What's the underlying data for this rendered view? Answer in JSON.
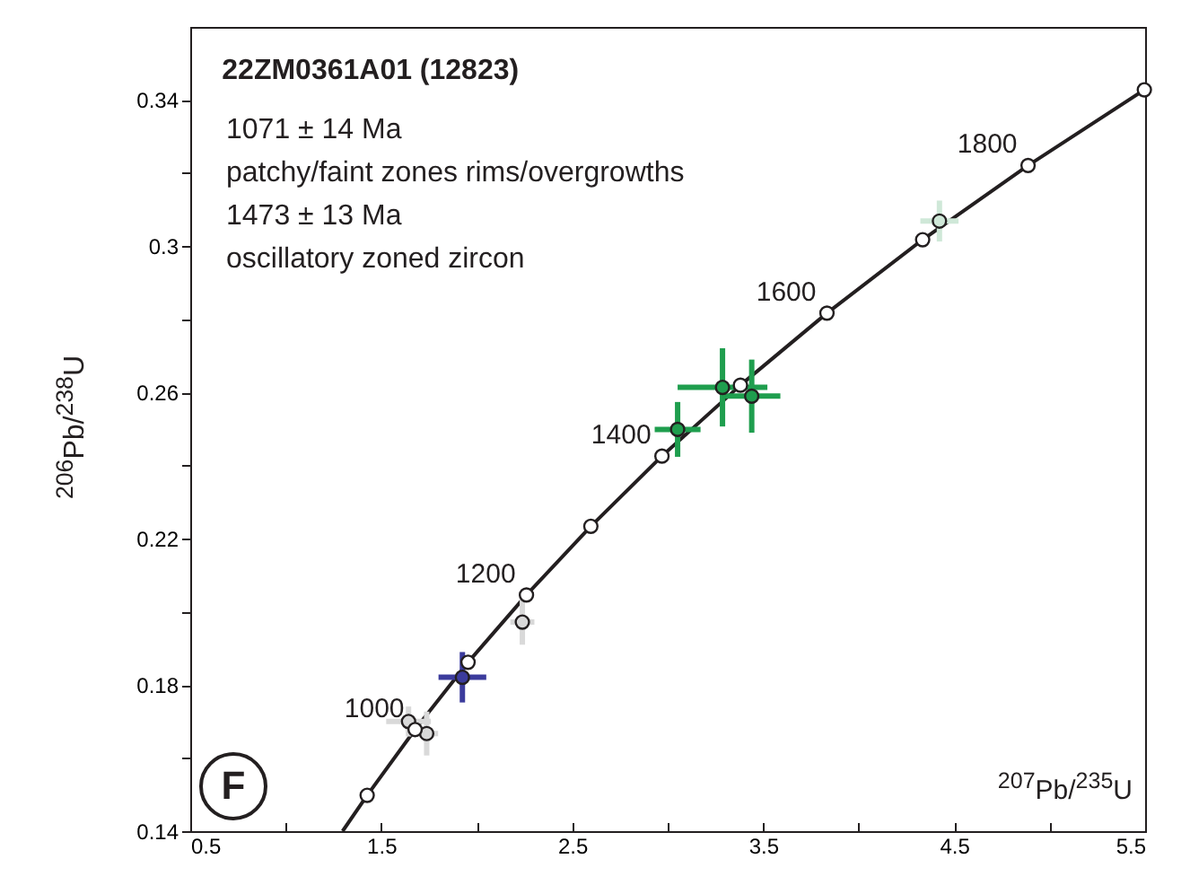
{
  "chart_data": {
    "type": "scatter",
    "title": "22ZM0361A01 (12823)",
    "xlabel": "$^{207}$Pb/$^{235}$U",
    "ylabel": "$^{206}$Pb/$^{238}$U",
    "xlim": [
      0.5,
      5.5
    ],
    "ylim": [
      0.14,
      0.36
    ],
    "xticks": [
      0.5,
      {
        "value": 1.0,
        "label": null
      },
      1.5,
      {
        "value": 2.0,
        "label": null
      },
      2.5,
      {
        "value": 3.0,
        "label": null
      },
      3.5,
      {
        "value": 4.0,
        "label": null
      },
      4.5,
      {
        "value": 5.0,
        "label": null
      },
      5.5
    ],
    "yticks": [
      0.14,
      {
        "value": 0.16,
        "label": null
      },
      0.18,
      {
        "value": 0.2,
        "label": null
      },
      0.22,
      {
        "value": 0.24,
        "label": null
      },
      0.26,
      {
        "value": 0.28,
        "label": null
      },
      0.3,
      {
        "value": 0.32,
        "label": null
      },
      0.34
    ],
    "grid": false,
    "marker": "circle",
    "series": [
      {
        "type": "line",
        "marker": "none",
        "color": "#231f20",
        "x": [
          1.2977,
          1.4263,
          1.6774,
          1.9546,
          2.2604,
          2.5976,
          2.97,
          3.381,
          3.834,
          4.335,
          4.887,
          5.496
        ],
        "values": [
          0.14,
          0.1498,
          0.1678,
          0.1862,
          0.2046,
          0.2234,
          0.2426,
          0.262,
          0.2817,
          0.3018,
          0.3221,
          0.3428
        ]
      },
      {
        "color": "#d9d9d9",
        "x": [
          1.643,
          1.738,
          2.239
        ],
        "values": [
          0.17,
          0.1667,
          0.1972
        ],
        "xerrors": [
          0.117,
          0.06,
          0.063
        ],
        "errors": [
          0.0041,
          0.006,
          0.0062
        ]
      },
      {
        "color": "#3b3b9c",
        "x": [
          1.925
        ],
        "values": [
          0.1821
        ],
        "xerrors": [
          0.125
        ],
        "errors": [
          0.0069
        ]
      },
      {
        "color": "#1f9e4e",
        "x": [
          3.287,
          3.052,
          3.44
        ],
        "values": [
          0.2614,
          0.2499,
          0.259
        ],
        "xerrors": [
          0.235,
          0.12,
          0.15
        ],
        "errors": [
          0.0107,
          0.0075,
          0.01
        ]
      },
      {
        "color": "#cfe8d8",
        "x": [
          4.423
        ],
        "values": [
          0.3069
        ],
        "xerrors": [
          0.1
        ],
        "errors": [
          0.0056
        ]
      },
      {
        "color": "#ffffff",
        "x": [
          1.4263,
          1.6774,
          1.9546,
          2.2604,
          2.5976,
          2.97,
          3.381,
          3.834,
          4.335,
          4.887,
          5.496
        ],
        "values": [
          0.1498,
          0.1678,
          0.1862,
          0.2046,
          0.2234,
          0.2426,
          0.262,
          0.2817,
          0.3018,
          0.3221,
          0.3428
        ]
      }
    ],
    "annotations": [
      "1071 ± 14 Ma",
      "patchy/faint zones rims/overgrowths",
      "1473 ± 13 Ma",
      "oscillatory zoned zircon",
      "F",
      {
        "text": "1000",
        "x": 1.6774,
        "y": 0.1678
      },
      {
        "text": "1200",
        "x": 2.2604,
        "y": 0.2046
      },
      {
        "text": "1400",
        "x": 2.97,
        "y": 0.2426
      },
      {
        "text": "1600",
        "x": 3.834,
        "y": 0.2817
      },
      {
        "text": "1800",
        "x": 4.887,
        "y": 0.3221
      }
    ]
  }
}
